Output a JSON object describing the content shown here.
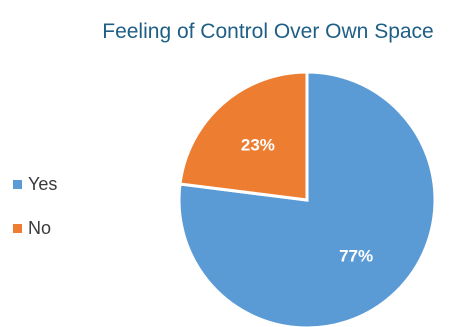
{
  "colors": {
    "yes": "#5b9bd5",
    "no": "#ed7d31",
    "title": "#1f5f86",
    "label": "#ffffff"
  },
  "chart_data": {
    "type": "pie",
    "title": "Feeling of Control Over Own Space",
    "categories": [
      "Yes",
      "No"
    ],
    "values": [
      77,
      23
    ],
    "labels": [
      "77%",
      "23%"
    ],
    "legend": "left"
  }
}
